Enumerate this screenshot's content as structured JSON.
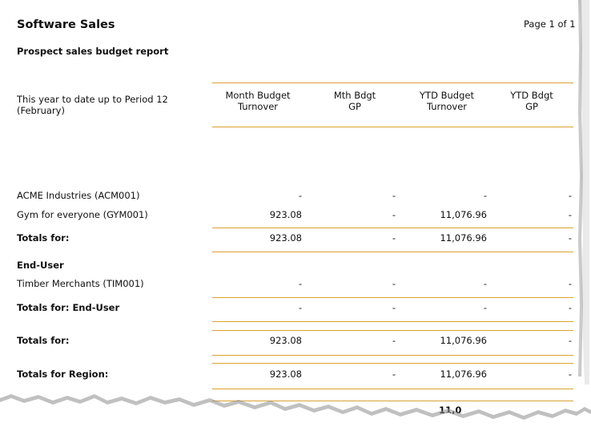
{
  "report": {
    "title": "Software Sales",
    "subtitle": "Prospect sales budget report",
    "page_info": "Page 1 of 1",
    "period_line1": "This year to date up to Period 12",
    "period_line2": "(February)"
  },
  "columns": [
    {
      "line1": "Month Budget",
      "line2": "Turnover"
    },
    {
      "line1": "Mth Bdgt",
      "line2": "GP"
    },
    {
      "line1": "YTD Budget",
      "line2": "Turnover"
    },
    {
      "line1": "YTD Bdgt",
      "line2": "GP"
    }
  ],
  "rows": [
    {
      "label": "ACME Industries (ACM001)",
      "v": [
        "-",
        "-",
        "-",
        "-"
      ]
    },
    {
      "label": "Gym for everyone (GYM001)",
      "v": [
        "923.08",
        "-",
        "11,076.96",
        "-"
      ]
    },
    {
      "label": "Totals for:",
      "v": [
        "923.08",
        "-",
        "11,076.96",
        "-"
      ]
    },
    {
      "label": "End-User"
    },
    {
      "label": "Timber Merchants (TIM001)",
      "v": [
        "-",
        "-",
        "-",
        "-"
      ]
    },
    {
      "label": "Totals for: End-User",
      "v": [
        "-",
        "-",
        "-",
        "-"
      ]
    },
    {
      "label": "Totals for:",
      "v": [
        "923.08",
        "-",
        "11,076.96",
        "-"
      ]
    },
    {
      "label": "Totals for Region:",
      "v": [
        "923.08",
        "-",
        "11,076.96",
        "-"
      ]
    }
  ],
  "partial_bottom_value": "11,0",
  "colors": {
    "rule": "#d9a233",
    "shadow": "#9a9a9a"
  }
}
